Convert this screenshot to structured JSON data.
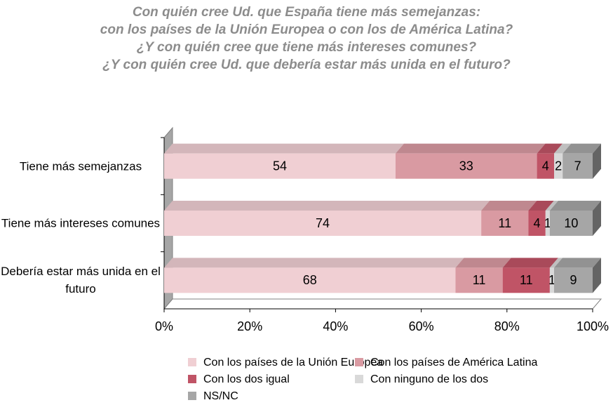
{
  "chart_data": {
    "type": "stacked-bar-3d-horizontal",
    "title": [
      "Con quién cree Ud. que España tiene más semejanzas:",
      "con los países de la Unión Europea o con los de América Latina?",
      "¿Y con quién cree que tiene más intereses comunes?",
      "¿Y con quién cree Ud. que debería estar más unida en el futuro?"
    ],
    "categories": [
      "Tiene más semejanzas",
      "Tiene más intereses comunes",
      "Debería estar más unida en el futuro"
    ],
    "series": [
      {
        "name": "Con los países de la Unión Europea",
        "color": "#f0cfd3",
        "values": [
          54,
          74,
          68
        ]
      },
      {
        "name": "Con los países de América Latina",
        "color": "#d99aa2",
        "values": [
          33,
          11,
          11
        ]
      },
      {
        "name": "Con los dos igual",
        "color": "#c05466",
        "values": [
          4,
          4,
          11
        ]
      },
      {
        "name": "Con ninguno de los dos",
        "color": "#d9d9d9",
        "values": [
          2,
          1,
          1
        ]
      },
      {
        "name": "NS/NC",
        "color": "#a6a6a6",
        "values": [
          7,
          10,
          9
        ]
      }
    ],
    "xlim": [
      0,
      100
    ],
    "xticks": [
      {
        "value": 0,
        "label": "0%"
      },
      {
        "value": 20,
        "label": "20%"
      },
      {
        "value": 40,
        "label": "40%"
      },
      {
        "value": 60,
        "label": "60%"
      },
      {
        "value": 80,
        "label": "80%"
      },
      {
        "value": 100,
        "label": "100%"
      }
    ]
  }
}
